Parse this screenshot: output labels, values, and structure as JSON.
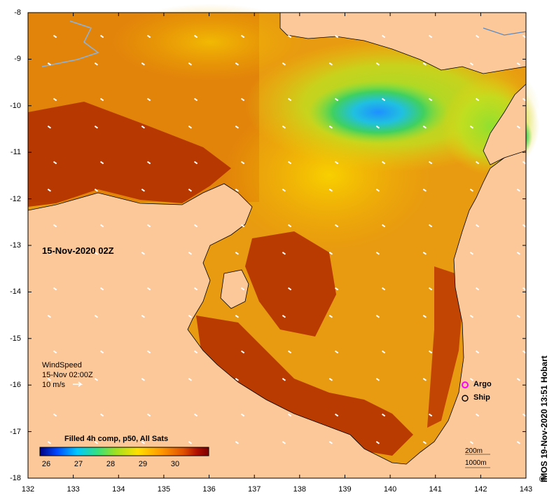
{
  "map": {
    "date_label": "15-Nov-2020 02Z",
    "wind": {
      "title": "WindSpeed",
      "time": "15-Nov 02:00Z",
      "ref": "10 m/s"
    },
    "colorbar": {
      "title": "Filled 4h comp, p50, All Sats",
      "ticks": [
        "26",
        "27",
        "28",
        "29",
        "30"
      ],
      "colors": [
        "#00007f",
        "#0047ff",
        "#00c8ff",
        "#33e080",
        "#a0e020",
        "#ffe000",
        "#ff9800",
        "#e05000",
        "#b01000",
        "#7a0000"
      ]
    },
    "legend": {
      "argo": "Argo",
      "ship": "Ship",
      "argo_color": "#ff00ff"
    },
    "scale": {
      "depth1": "200m",
      "depth2": "1000m"
    },
    "credit": "IMOS 19-Nov-2020 13:51 Hobart",
    "copyright": "©",
    "x_ticks": [
      "132",
      "133",
      "134",
      "135",
      "136",
      "137",
      "138",
      "139",
      "140",
      "141",
      "142",
      "143"
    ],
    "y_ticks": [
      "-8",
      "-9",
      "-10",
      "-11",
      "-12",
      "-13",
      "-14",
      "-15",
      "-16",
      "-17",
      "-18"
    ],
    "land_color": "#fcc899"
  }
}
